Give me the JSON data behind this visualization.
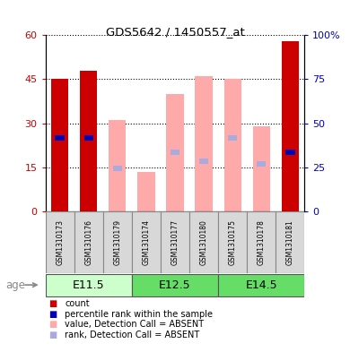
{
  "title": "GDS5642 / 1450557_at",
  "samples": [
    "GSM1310173",
    "GSM1310176",
    "GSM1310179",
    "GSM1310174",
    "GSM1310177",
    "GSM1310180",
    "GSM1310175",
    "GSM1310178",
    "GSM1310181"
  ],
  "red_bars": [
    45.0,
    48.0,
    0,
    0,
    0,
    0,
    0,
    0,
    58.0
  ],
  "blue_marker_y": [
    25.0,
    25.0,
    0,
    0,
    0,
    0,
    0,
    0,
    20.0
  ],
  "pink_bars": [
    0,
    0,
    31.0,
    13.5,
    40.0,
    46.0,
    45.0,
    29.0,
    0
  ],
  "lightblue_marker_y": [
    0,
    0,
    14.5,
    0,
    20.0,
    17.0,
    25.0,
    16.0,
    0
  ],
  "ylim_left": [
    0,
    60
  ],
  "ylim_right": [
    0,
    100
  ],
  "yticks_left": [
    0,
    15,
    30,
    45,
    60
  ],
  "yticks_right": [
    0,
    25,
    50,
    75,
    100
  ],
  "ytick_labels_left": [
    "0",
    "15",
    "30",
    "45",
    "60"
  ],
  "ytick_labels_right": [
    "0",
    "25",
    "50",
    "75",
    "100%"
  ],
  "color_red": "#cc0000",
  "color_blue": "#0000bb",
  "color_pink": "#ffaaaa",
  "color_lightblue": "#aaaadd",
  "bar_width": 0.6,
  "color_left_axis": "#cc0000",
  "color_right_axis": "#0000bb",
  "group_defs": [
    {
      "label": "E11.5",
      "start": 0,
      "end": 2,
      "color": "#ccffcc"
    },
    {
      "label": "E12.5",
      "start": 3,
      "end": 5,
      "color": "#66dd66"
    },
    {
      "label": "E14.5",
      "start": 6,
      "end": 8,
      "color": "#66dd66"
    }
  ],
  "legend_items": [
    {
      "color": "#cc0000",
      "label": "count"
    },
    {
      "color": "#0000bb",
      "label": "percentile rank within the sample"
    },
    {
      "color": "#ffaaaa",
      "label": "value, Detection Call = ABSENT"
    },
    {
      "color": "#aaaadd",
      "label": "rank, Detection Call = ABSENT"
    }
  ]
}
